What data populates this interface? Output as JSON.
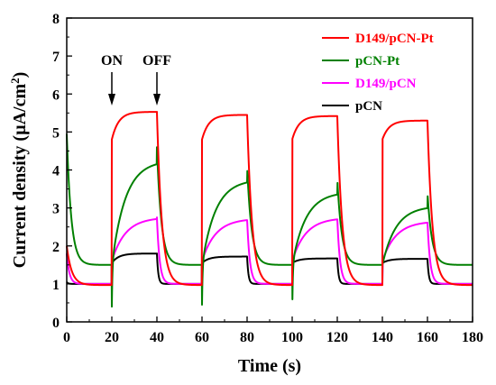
{
  "chart_data": {
    "type": "line",
    "xlabel": "Time (s)",
    "ylabel": "Current density (µA/cm²)",
    "ylabel_parts": {
      "main": "Current density (µA/cm",
      "sup": "2",
      "close": ")"
    },
    "xlim": [
      0,
      180
    ],
    "ylim": [
      0,
      8
    ],
    "xticks": [
      0,
      20,
      40,
      60,
      80,
      100,
      120,
      140,
      160,
      180
    ],
    "yticks": [
      0,
      1,
      2,
      3,
      4,
      5,
      6,
      7,
      8
    ],
    "grid": false,
    "legend_position": "top-right",
    "annotations": [
      {
        "label": "ON",
        "x": 20
      },
      {
        "label": "OFF",
        "x": 40
      }
    ],
    "on_intervals": [
      [
        20,
        40
      ],
      [
        60,
        80
      ],
      [
        100,
        120
      ],
      [
        140,
        160
      ]
    ],
    "series": [
      {
        "name": "D149/pCN-Pt",
        "color": "#ff0000",
        "start": 2.0,
        "dark_base": 0.97,
        "on_start": 4.8,
        "on_plateaus": [
          5.53,
          5.45,
          5.42,
          5.3
        ],
        "tau_on": 3.0,
        "tau_off": 2.2,
        "on_spike": 0,
        "off_spike": 0,
        "dips": [
          0,
          0,
          0,
          0
        ]
      },
      {
        "name": "pCN-Pt",
        "color": "#008000",
        "start": 4.95,
        "dark_base": 1.5,
        "on_start": 1.5,
        "on_plateaus": [
          4.25,
          3.75,
          3.42,
          3.05
        ],
        "tau_on": 6.0,
        "tau_off": 2.0,
        "on_spike": 0,
        "off_spike": 0.35,
        "dips": [
          0.4,
          0.45,
          0.1,
          0.0
        ]
      },
      {
        "name": "D149/pCN",
        "color": "#ff00ff",
        "start": 1.8,
        "dark_base": 1.0,
        "on_start": 1.6,
        "on_plateaus": [
          2.75,
          2.72,
          2.74,
          2.65
        ],
        "tau_on": 6.0,
        "tau_off": 1.2,
        "on_spike": 0,
        "off_spike": 0,
        "dips": [
          0,
          0,
          0,
          0
        ]
      },
      {
        "name": "pCN",
        "color": "#000000",
        "start": 1.05,
        "dark_base": 1.0,
        "on_start": 1.55,
        "on_plateaus": [
          1.8,
          1.72,
          1.67,
          1.66
        ],
        "tau_on": 3.0,
        "tau_off": 0.6,
        "on_spike": 0,
        "off_spike": 0,
        "dips": [
          0,
          0,
          0,
          0
        ]
      }
    ]
  }
}
